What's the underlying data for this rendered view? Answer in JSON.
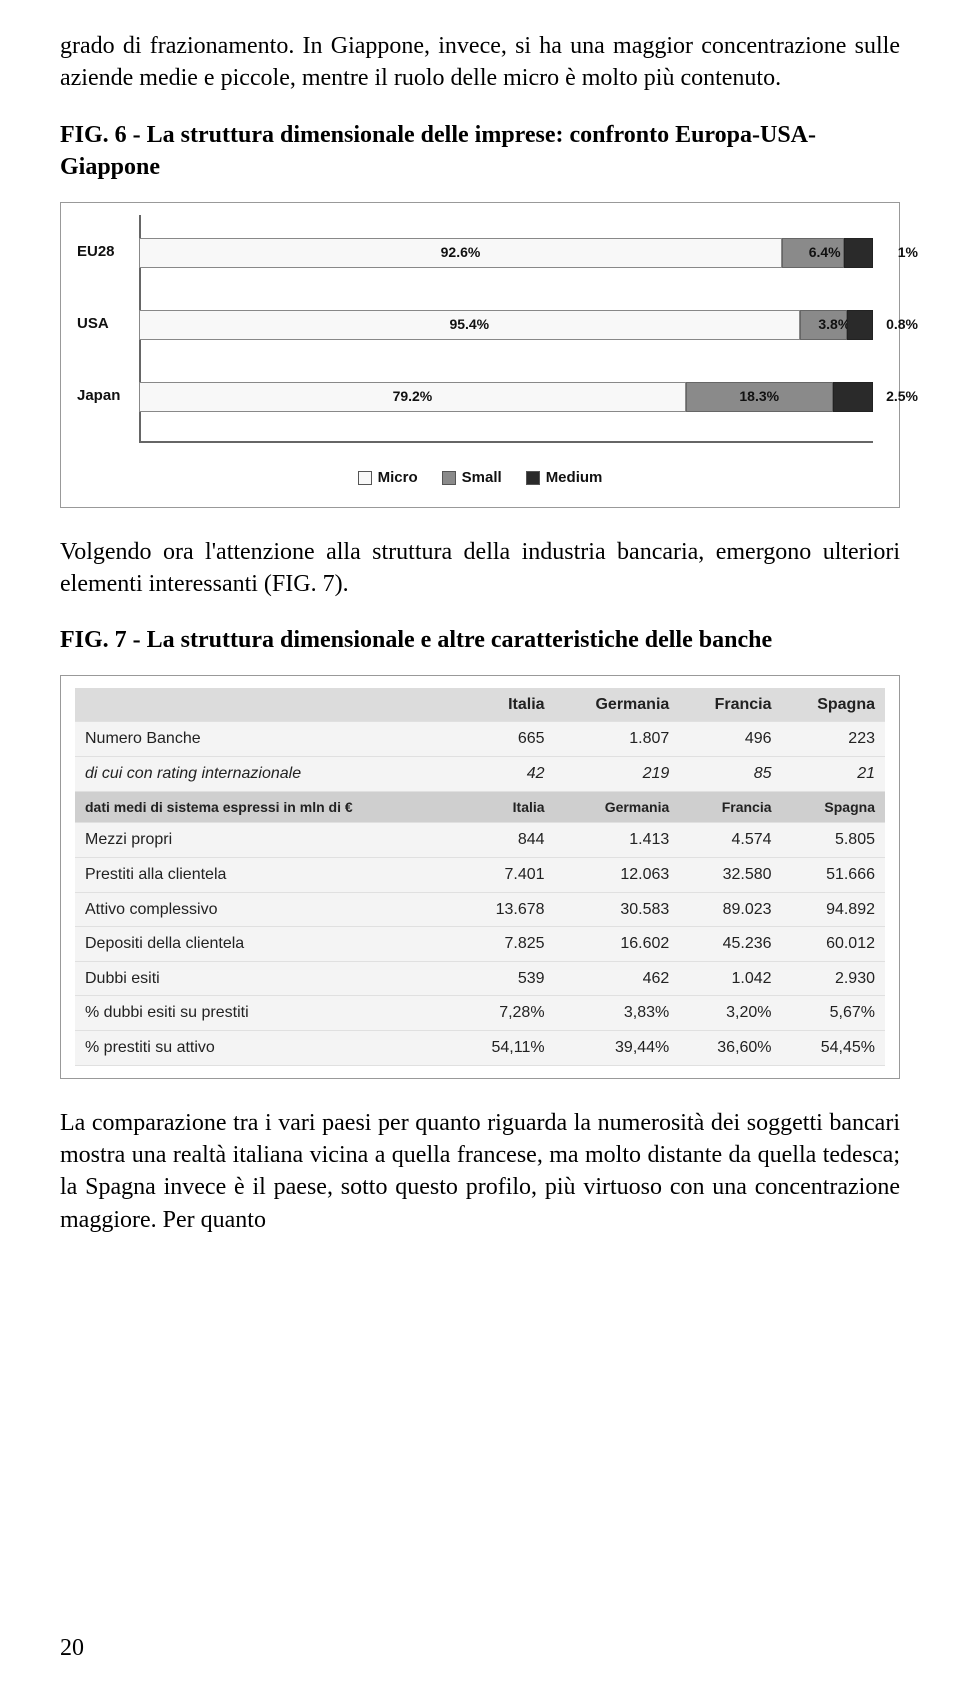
{
  "para1": "grado di frazionamento. In Giappone, invece, si ha una maggior concentrazione sulle aziende medie e piccole, mentre il ruolo delle micro è molto più contenuto.",
  "fig6_caption": "FIG. 6 - La struttura dimensionale delle imprese: confronto Europa-USA- Giappone",
  "chart": {
    "type": "stacked-bar-horizontal",
    "colors": {
      "micro": "#f8f8f8",
      "small": "#8a8a8a",
      "medium": "#2a2a2a",
      "axis": "#666666",
      "text": "#111111"
    },
    "font_family": "Verdana",
    "font_size": 15,
    "series": [
      "Micro",
      "Small",
      "Medium"
    ],
    "categories": [
      "EU28",
      "USA",
      "Japan"
    ],
    "values": [
      {
        "label": "EU28",
        "micro": 92.6,
        "small": 6.4,
        "medium": 1.0,
        "micro_label": "92.6%",
        "small_label": "6.4%",
        "medium_label": "1%"
      },
      {
        "label": "USA",
        "micro": 95.4,
        "small": 3.8,
        "medium": 0.8,
        "micro_label": "95.4%",
        "small_label": "3.8%",
        "medium_label": "0.8%"
      },
      {
        "label": "Japan",
        "micro": 79.2,
        "small": 18.3,
        "medium": 2.5,
        "micro_label": "79.2%",
        "small_label": "18.3%",
        "medium_label": "2.5%"
      }
    ],
    "legend": {
      "micro": "Micro",
      "small": "Small",
      "medium": "Medium"
    }
  },
  "para2": "Volgendo ora l'attenzione alla struttura della industria bancaria, emergono ulteriori elementi interessanti (FIG. 7).",
  "fig7_caption": "FIG. 7 -  La struttura dimensionale e altre caratteristiche delle banche",
  "table": {
    "type": "table",
    "font_family": "Arial",
    "font_size": 16,
    "header_bg": "#dcdcdc",
    "row_bg": "#f4f4f4",
    "border_color": "#e0e0e0",
    "columns": [
      "",
      "Italia",
      "Germania",
      "Francia",
      "Spagna"
    ],
    "section1_rows": [
      {
        "label": "Numero Banche",
        "cells": [
          "665",
          "1.807",
          "496",
          "223"
        ],
        "italic": false
      },
      {
        "label": "di cui con rating internazionale",
        "cells": [
          "42",
          "219",
          "85",
          "21"
        ],
        "italic": true
      }
    ],
    "section2_header": [
      "dati medi di sistema espressi in mln di €",
      "Italia",
      "Germania",
      "Francia",
      "Spagna"
    ],
    "section2_rows": [
      {
        "label": "Mezzi propri",
        "cells": [
          "844",
          "1.413",
          "4.574",
          "5.805"
        ]
      },
      {
        "label": "Prestiti alla clientela",
        "cells": [
          "7.401",
          "12.063",
          "32.580",
          "51.666"
        ]
      },
      {
        "label": "Attivo complessivo",
        "cells": [
          "13.678",
          "30.583",
          "89.023",
          "94.892"
        ]
      },
      {
        "label": "Depositi della clientela",
        "cells": [
          "7.825",
          "16.602",
          "45.236",
          "60.012"
        ]
      },
      {
        "label": "Dubbi esiti",
        "cells": [
          "539",
          "462",
          "1.042",
          "2.930"
        ]
      },
      {
        "label": "% dubbi esiti su prestiti",
        "cells": [
          "7,28%",
          "3,83%",
          "3,20%",
          "5,67%"
        ]
      },
      {
        "label": "% prestiti su attivo",
        "cells": [
          "54,11%",
          "39,44%",
          "36,60%",
          "54,45%"
        ]
      }
    ]
  },
  "para3": "La comparazione tra i vari paesi per quanto riguarda la numerosità dei soggetti bancari mostra una realtà italiana vicina a quella francese, ma molto distante da quella tedesca; la Spagna invece è il paese, sotto questo profilo, più virtuoso con una concentrazione maggiore. Per quanto",
  "page_number": "20"
}
